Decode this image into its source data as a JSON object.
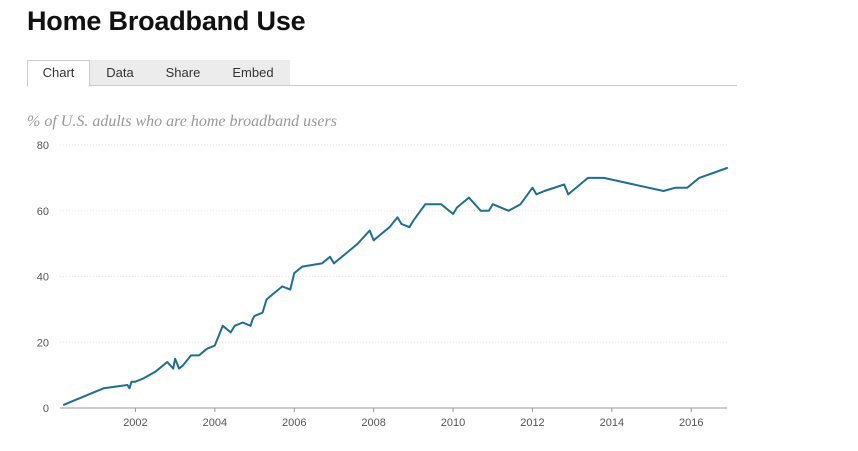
{
  "header": {
    "title": "Home Broadband Use"
  },
  "tabs": [
    {
      "label": "Chart",
      "active": true
    },
    {
      "label": "Data",
      "active": false
    },
    {
      "label": "Share",
      "active": false
    },
    {
      "label": "Embed",
      "active": false
    }
  ],
  "colors": {
    "line": "#1f6e94",
    "grid": "#e6e6e6",
    "axis": "#999999"
  },
  "chart_data": {
    "type": "line",
    "title": "% of U.S. adults who are home broadband users",
    "xlabel": "",
    "ylabel": "",
    "xlim": [
      2000.1,
      2016.9
    ],
    "ylim": [
      0,
      80
    ],
    "x_ticks": [
      {
        "value": 2002,
        "label": "2002"
      },
      {
        "value": 2004,
        "label": "2004"
      },
      {
        "value": 2006,
        "label": "2006"
      },
      {
        "value": 2008,
        "label": "2008"
      },
      {
        "value": 2010,
        "label": "2010"
      },
      {
        "value": 2012,
        "label": "2012"
      },
      {
        "value": 2014,
        "label": "2014"
      },
      {
        "value": 2016,
        "label": "2016"
      }
    ],
    "y_ticks": [
      {
        "value": 0,
        "label": "0"
      },
      {
        "value": 20,
        "label": "20"
      },
      {
        "value": 40,
        "label": "40"
      },
      {
        "value": 60,
        "label": "60"
      },
      {
        "value": 80,
        "label": "80"
      }
    ],
    "grid": true,
    "legend": "none",
    "series": [
      {
        "x": [
          2000.2,
          2001.0,
          2001.2,
          2001.8,
          2001.85,
          2001.9,
          2002.0,
          2002.2,
          2002.5,
          2002.8,
          2002.95,
          2003.0,
          2003.1,
          2003.2,
          2003.4,
          2003.6,
          2003.8,
          2004.0,
          2004.2,
          2004.4,
          2004.5,
          2004.7,
          2004.9,
          2004.95,
          2005.0,
          2005.2,
          2005.3,
          2005.5,
          2005.7,
          2005.9,
          2006.0,
          2006.1,
          2006.2,
          2006.7,
          2006.9,
          2007.0,
          2007.3,
          2007.6,
          2007.9,
          2008.0,
          2008.4,
          2008.6,
          2008.7,
          2008.9,
          2009.0,
          2009.3,
          2009.7,
          2010.0,
          2010.1,
          2010.4,
          2010.7,
          2010.9,
          2011.0,
          2011.4,
          2011.7,
          2012.0,
          2012.1,
          2012.3,
          2012.8,
          2012.9,
          2013.0,
          2013.4,
          2013.8,
          2015.3,
          2015.6,
          2015.9,
          2016.2,
          2016.9
        ],
        "values": [
          1,
          5,
          6,
          7,
          6,
          8,
          8,
          9,
          11,
          14,
          12,
          15,
          12,
          13,
          16,
          16,
          18,
          19,
          25,
          23,
          25,
          26,
          25,
          27,
          28,
          29,
          33,
          35,
          37,
          36,
          41,
          42,
          43,
          44,
          46,
          44,
          47,
          50,
          54,
          51,
          55,
          58,
          56,
          55,
          57,
          62,
          62,
          59,
          61,
          64,
          60,
          60,
          62,
          60,
          62,
          67,
          65,
          66,
          68,
          65,
          66,
          70,
          70,
          66,
          67,
          67,
          70,
          73
        ]
      }
    ]
  }
}
